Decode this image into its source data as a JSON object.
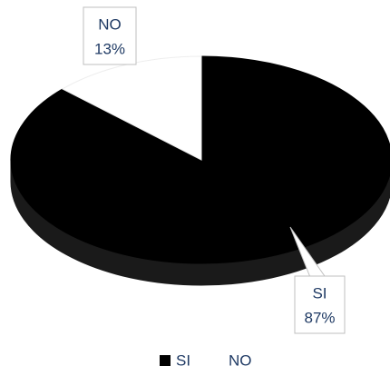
{
  "chart_data": {
    "type": "pie",
    "categories": [
      "SI",
      "NO"
    ],
    "values": [
      87,
      13
    ],
    "value_labels": [
      "87%",
      "13%"
    ],
    "colors": [
      "#000000",
      "#ffffff"
    ],
    "legend": "bottom"
  }
}
